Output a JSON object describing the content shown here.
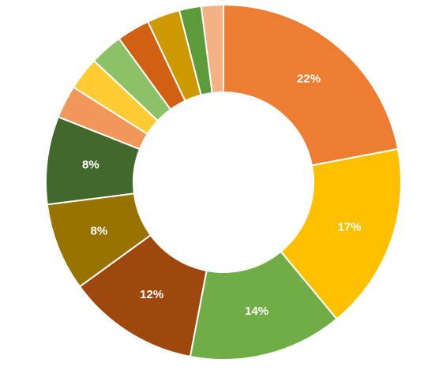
{
  "chart_data": {
    "type": "donut",
    "values": [
      22,
      17,
      14,
      12,
      8,
      8,
      3,
      3,
      3,
      3,
      3,
      2,
      2
    ],
    "value_labels": [
      "22%",
      "17%",
      "14%",
      "12%",
      "8%",
      "8%",
      null,
      null,
      null,
      null,
      null,
      null,
      null
    ],
    "colors": [
      "#ED7D31",
      "#FFC000",
      "#70AD47",
      "#9E480E",
      "#997300",
      "#43682B",
      "#F1975A",
      "#FFCD33",
      "#8CC168",
      "#D26012",
      "#CC9A00",
      "#5B9B3A",
      "#F4B183"
    ]
  }
}
